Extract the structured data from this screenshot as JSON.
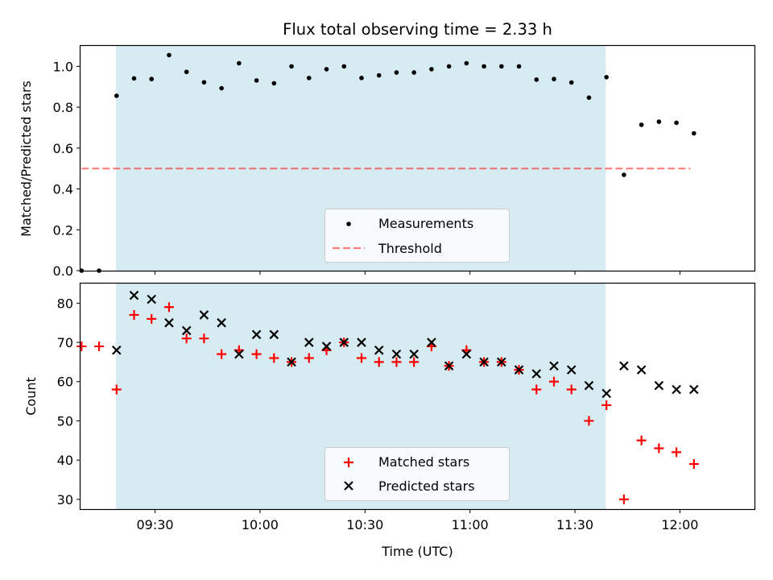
{
  "chart_data": {
    "type": "scatter",
    "title": "Flux total observing time = 2.33 h",
    "xlabel": "Time (UTC)",
    "x_unit": "minutes after 09:00 UTC",
    "x_ticks": [
      {
        "value": 30,
        "label": "09:30"
      },
      {
        "value": 60,
        "label": "10:00"
      },
      {
        "value": 90,
        "label": "10:30"
      },
      {
        "value": 120,
        "label": "11:00"
      },
      {
        "value": 150,
        "label": "11:30"
      },
      {
        "value": 180,
        "label": "12:00"
      }
    ],
    "xlim": [
      8.7,
      201.3
    ],
    "observing_span": [
      18.8,
      158.8
    ],
    "colors": {
      "span": "#add8e6",
      "threshold": "#ff0000",
      "measurement": "#000000",
      "matched": "#ff0000",
      "predicted": "#000000"
    },
    "top": {
      "ylabel": "Matched/Predicted stars",
      "ylim": [
        0,
        1.1
      ],
      "y_ticks": [
        "0.0",
        "0.2",
        "0.4",
        "0.6",
        "0.8",
        "1.0"
      ],
      "threshold": {
        "value": 0.5,
        "x_range": [
          9,
          183
        ]
      },
      "legend": [
        "Measurements",
        "Threshold"
      ],
      "legend_position": "lower center",
      "measurements": [
        {
          "x": 9,
          "y": 0.0
        },
        {
          "x": 14,
          "y": 0.0
        },
        {
          "x": 19,
          "y": 0.856
        },
        {
          "x": 24,
          "y": 0.941
        },
        {
          "x": 29,
          "y": 0.938
        },
        {
          "x": 34,
          "y": 1.055
        },
        {
          "x": 39,
          "y": 0.973
        },
        {
          "x": 44,
          "y": 0.922
        },
        {
          "x": 49,
          "y": 0.893
        },
        {
          "x": 54,
          "y": 1.015
        },
        {
          "x": 59,
          "y": 0.931
        },
        {
          "x": 64,
          "y": 0.917
        },
        {
          "x": 69,
          "y": 1.0
        },
        {
          "x": 74,
          "y": 0.943
        },
        {
          "x": 79,
          "y": 0.986
        },
        {
          "x": 84,
          "y": 1.0
        },
        {
          "x": 89,
          "y": 0.943
        },
        {
          "x": 94,
          "y": 0.956
        },
        {
          "x": 99,
          "y": 0.97
        },
        {
          "x": 104,
          "y": 0.97
        },
        {
          "x": 109,
          "y": 0.986
        },
        {
          "x": 114,
          "y": 1.0
        },
        {
          "x": 119,
          "y": 1.015
        },
        {
          "x": 124,
          "y": 1.0
        },
        {
          "x": 129,
          "y": 1.0
        },
        {
          "x": 134,
          "y": 1.0
        },
        {
          "x": 139,
          "y": 0.935
        },
        {
          "x": 144,
          "y": 0.938
        },
        {
          "x": 149,
          "y": 0.921
        },
        {
          "x": 154,
          "y": 0.847
        },
        {
          "x": 159,
          "y": 0.947
        },
        {
          "x": 164,
          "y": 0.469
        },
        {
          "x": 169,
          "y": 0.714
        },
        {
          "x": 174,
          "y": 0.729
        },
        {
          "x": 179,
          "y": 0.724
        },
        {
          "x": 184,
          "y": 0.672
        }
      ]
    },
    "bottom": {
      "ylabel": "Count",
      "ylim": [
        27.5,
        85
      ],
      "y_ticks": [
        "30",
        "40",
        "50",
        "60",
        "70",
        "80"
      ],
      "legend": [
        "Matched stars",
        "Predicted stars"
      ],
      "legend_position": "lower center",
      "matched": [
        {
          "x": 9,
          "y": 69
        },
        {
          "x": 14,
          "y": 69
        },
        {
          "x": 19,
          "y": 58
        },
        {
          "x": 24,
          "y": 77
        },
        {
          "x": 29,
          "y": 76
        },
        {
          "x": 34,
          "y": 79
        },
        {
          "x": 39,
          "y": 71
        },
        {
          "x": 44,
          "y": 71
        },
        {
          "x": 49,
          "y": 67
        },
        {
          "x": 54,
          "y": 68
        },
        {
          "x": 59,
          "y": 67
        },
        {
          "x": 64,
          "y": 66
        },
        {
          "x": 69,
          "y": 65
        },
        {
          "x": 74,
          "y": 66
        },
        {
          "x": 79,
          "y": 68
        },
        {
          "x": 84,
          "y": 70
        },
        {
          "x": 89,
          "y": 66
        },
        {
          "x": 94,
          "y": 65
        },
        {
          "x": 99,
          "y": 65
        },
        {
          "x": 104,
          "y": 65
        },
        {
          "x": 109,
          "y": 69
        },
        {
          "x": 114,
          "y": 64
        },
        {
          "x": 119,
          "y": 68
        },
        {
          "x": 124,
          "y": 65
        },
        {
          "x": 129,
          "y": 65
        },
        {
          "x": 134,
          "y": 63
        },
        {
          "x": 139,
          "y": 58
        },
        {
          "x": 144,
          "y": 60
        },
        {
          "x": 149,
          "y": 58
        },
        {
          "x": 154,
          "y": 50
        },
        {
          "x": 159,
          "y": 54
        },
        {
          "x": 164,
          "y": 30
        },
        {
          "x": 169,
          "y": 45
        },
        {
          "x": 174,
          "y": 43
        },
        {
          "x": 179,
          "y": 42
        },
        {
          "x": 184,
          "y": 39
        }
      ],
      "predicted": [
        {
          "x": 19,
          "y": 68
        },
        {
          "x": 24,
          "y": 82
        },
        {
          "x": 29,
          "y": 81
        },
        {
          "x": 34,
          "y": 75
        },
        {
          "x": 39,
          "y": 73
        },
        {
          "x": 44,
          "y": 77
        },
        {
          "x": 49,
          "y": 75
        },
        {
          "x": 54,
          "y": 67
        },
        {
          "x": 59,
          "y": 72
        },
        {
          "x": 64,
          "y": 72
        },
        {
          "x": 69,
          "y": 65
        },
        {
          "x": 74,
          "y": 70
        },
        {
          "x": 79,
          "y": 69
        },
        {
          "x": 84,
          "y": 70
        },
        {
          "x": 89,
          "y": 70
        },
        {
          "x": 94,
          "y": 68
        },
        {
          "x": 99,
          "y": 67
        },
        {
          "x": 104,
          "y": 67
        },
        {
          "x": 109,
          "y": 70
        },
        {
          "x": 114,
          "y": 64
        },
        {
          "x": 119,
          "y": 67
        },
        {
          "x": 124,
          "y": 65
        },
        {
          "x": 129,
          "y": 65
        },
        {
          "x": 134,
          "y": 63
        },
        {
          "x": 139,
          "y": 62
        },
        {
          "x": 144,
          "y": 64
        },
        {
          "x": 149,
          "y": 63
        },
        {
          "x": 154,
          "y": 59
        },
        {
          "x": 159,
          "y": 57
        },
        {
          "x": 164,
          "y": 64
        },
        {
          "x": 169,
          "y": 63
        },
        {
          "x": 174,
          "y": 59
        },
        {
          "x": 179,
          "y": 58
        },
        {
          "x": 184,
          "y": 58
        }
      ]
    }
  }
}
